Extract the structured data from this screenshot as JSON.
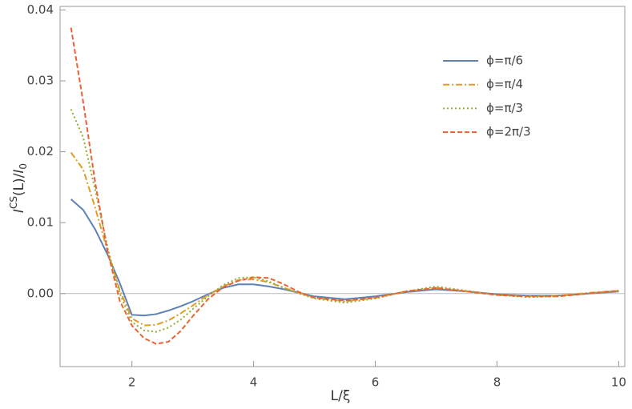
{
  "chart_data": {
    "type": "line",
    "xlabel": "L/ξ",
    "ylabel_parts": [
      "I",
      "CS",
      "(L)/",
      "I",
      "0"
    ],
    "x": [
      1,
      1.2,
      1.4,
      1.6,
      1.8,
      2,
      2.2,
      2.4,
      2.6,
      2.8,
      3,
      3.25,
      3.5,
      3.75,
      4,
      4.25,
      4.5,
      4.75,
      5,
      5.5,
      6,
      6.5,
      7,
      7.5,
      8,
      8.5,
      9,
      9.5,
      10
    ],
    "series": [
      {
        "name": "ϕ=π/6",
        "color": "#5e81b5",
        "dash": "solid",
        "values": [
          0.0133,
          0.0118,
          0.009,
          0.0055,
          0.0015,
          -0.003,
          -0.0031,
          -0.0029,
          -0.0024,
          -0.0018,
          -0.0011,
          -0.0001,
          0.0008,
          0.0013,
          0.0013,
          0.001,
          0.0006,
          0.0001,
          -0.0004,
          -0.0008,
          -0.0004,
          0.0002,
          0.0006,
          0.0003,
          -0.0001,
          -0.0003,
          -0.0003,
          0.0,
          0.0003
        ]
      },
      {
        "name": "ϕ=π/4",
        "color": "#e19c24",
        "dash": "dashdot",
        "values": [
          0.0199,
          0.0175,
          0.012,
          0.006,
          0.0005,
          -0.0035,
          -0.0045,
          -0.0044,
          -0.0038,
          -0.0028,
          -0.0017,
          -0.0002,
          0.001,
          0.0019,
          0.002,
          0.0016,
          0.0008,
          0.0001,
          -0.0006,
          -0.0011,
          -0.0006,
          0.0003,
          0.0008,
          0.0003,
          -0.0002,
          -0.0004,
          -0.0003,
          0.0001,
          0.0004
        ]
      },
      {
        "name": "ϕ=π/3",
        "color": "#8fb032",
        "dash": "dot",
        "values": [
          0.026,
          0.022,
          0.0145,
          0.0065,
          0.0,
          -0.004,
          -0.0052,
          -0.0054,
          -0.0048,
          -0.0037,
          -0.0022,
          -0.0004,
          0.0012,
          0.0022,
          0.0023,
          0.0017,
          0.0008,
          0.0,
          -0.0007,
          -0.0013,
          -0.0007,
          0.0003,
          0.001,
          0.0004,
          -0.0002,
          -0.0005,
          -0.0004,
          0.0,
          0.0004
        ]
      },
      {
        "name": "ϕ=2π/3",
        "color": "#eb6235",
        "dash": "dash",
        "values": [
          0.0375,
          0.027,
          0.0155,
          0.006,
          -0.001,
          -0.0045,
          -0.0063,
          -0.0071,
          -0.0068,
          -0.0053,
          -0.0032,
          -0.0008,
          0.0009,
          0.0018,
          0.0023,
          0.0022,
          0.0013,
          0.0002,
          -0.0006,
          -0.001,
          -0.0006,
          0.0003,
          0.0008,
          0.0003,
          -0.0002,
          -0.0004,
          -0.0004,
          0.0,
          0.0004
        ]
      }
    ],
    "xlim": [
      0.82,
      10.1
    ],
    "ylim": [
      -0.0103,
      0.0405
    ],
    "xticks": [
      2,
      4,
      6,
      8,
      10
    ],
    "yticks": [
      {
        "value": 0,
        "label": "0.00"
      },
      0.01,
      0.02,
      0.03,
      0.04
    ],
    "legend": "top-right"
  }
}
